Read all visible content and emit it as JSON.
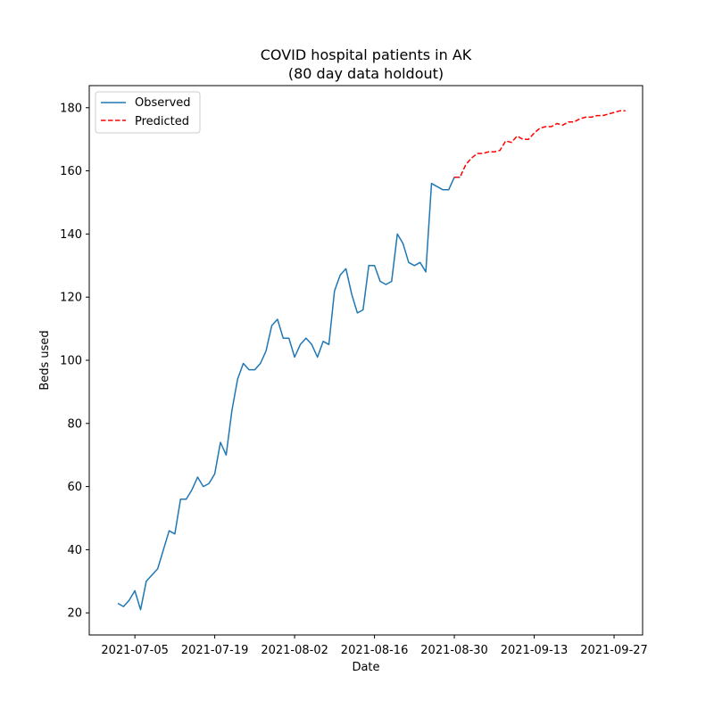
{
  "chart_data": {
    "type": "line",
    "title": "COVID hospital patients in AK",
    "subtitle": "(80 day data holdout)",
    "xlabel": "Date",
    "ylabel": "Beds used",
    "xlim": [
      "2021-06-27",
      "2021-10-02"
    ],
    "ylim": [
      13,
      187
    ],
    "grid": false,
    "legend_position": "top-left",
    "x_ticks": [
      "2021-07-05",
      "2021-07-19",
      "2021-08-02",
      "2021-08-16",
      "2021-08-30",
      "2021-09-13",
      "2021-09-27"
    ],
    "y_ticks": [
      20,
      40,
      60,
      80,
      100,
      120,
      140,
      160,
      180
    ],
    "series": [
      {
        "name": "Observed",
        "color": "#1f77b4",
        "style": "solid",
        "x": [
          "2021-07-02",
          "2021-07-03",
          "2021-07-04",
          "2021-07-05",
          "2021-07-06",
          "2021-07-07",
          "2021-07-09",
          "2021-07-11",
          "2021-07-12",
          "2021-07-13",
          "2021-07-14",
          "2021-07-15",
          "2021-07-16",
          "2021-07-17",
          "2021-07-18",
          "2021-07-19",
          "2021-07-20",
          "2021-07-21",
          "2021-07-22",
          "2021-07-23",
          "2021-07-24",
          "2021-07-25",
          "2021-07-26",
          "2021-07-27",
          "2021-07-28",
          "2021-07-29",
          "2021-07-30",
          "2021-07-31",
          "2021-08-01",
          "2021-08-02",
          "2021-08-03",
          "2021-08-04",
          "2021-08-05",
          "2021-08-06",
          "2021-08-07",
          "2021-08-08",
          "2021-08-09",
          "2021-08-10",
          "2021-08-11",
          "2021-08-12",
          "2021-08-13",
          "2021-08-14",
          "2021-08-15",
          "2021-08-16",
          "2021-08-17",
          "2021-08-18",
          "2021-08-19",
          "2021-08-20",
          "2021-08-21",
          "2021-08-22",
          "2021-08-23",
          "2021-08-24",
          "2021-08-25",
          "2021-08-26",
          "2021-08-27",
          "2021-08-28",
          "2021-08-29",
          "2021-08-30",
          "2021-08-31"
        ],
        "y": [
          23,
          22,
          24,
          27,
          21,
          30,
          34,
          46,
          45,
          56,
          56,
          59,
          63,
          60,
          61,
          64,
          74,
          70,
          84,
          94,
          99,
          97,
          97,
          99,
          103,
          111,
          113,
          107,
          107,
          101,
          105,
          107,
          105,
          101,
          106,
          105,
          122,
          127,
          129,
          121,
          115,
          116,
          130,
          130,
          125,
          124,
          125,
          140,
          137,
          131,
          130,
          131,
          128,
          156,
          155,
          154,
          154,
          158,
          158
        ]
      },
      {
        "name": "Predicted",
        "color": "#ff0000",
        "style": "dashed",
        "x": [
          "2021-08-30",
          "2021-08-31",
          "2021-09-01",
          "2021-09-02",
          "2021-09-03",
          "2021-09-04",
          "2021-09-05",
          "2021-09-06",
          "2021-09-07",
          "2021-09-08",
          "2021-09-09",
          "2021-09-10",
          "2021-09-11",
          "2021-09-12",
          "2021-09-13",
          "2021-09-14",
          "2021-09-15",
          "2021-09-16",
          "2021-09-17",
          "2021-09-18",
          "2021-09-19",
          "2021-09-20",
          "2021-09-21",
          "2021-09-22",
          "2021-09-23",
          "2021-09-24",
          "2021-09-25",
          "2021-09-26",
          "2021-09-27",
          "2021-09-28",
          "2021-09-29"
        ],
        "y": [
          158,
          158,
          162,
          164,
          165.5,
          165.5,
          166,
          166,
          166.5,
          169.5,
          169,
          171,
          170,
          170,
          172,
          173.5,
          174,
          174,
          175,
          174.5,
          175.5,
          175.5,
          176.5,
          177,
          177,
          177.5,
          177.5,
          178,
          178.5,
          179,
          179
        ]
      }
    ]
  }
}
